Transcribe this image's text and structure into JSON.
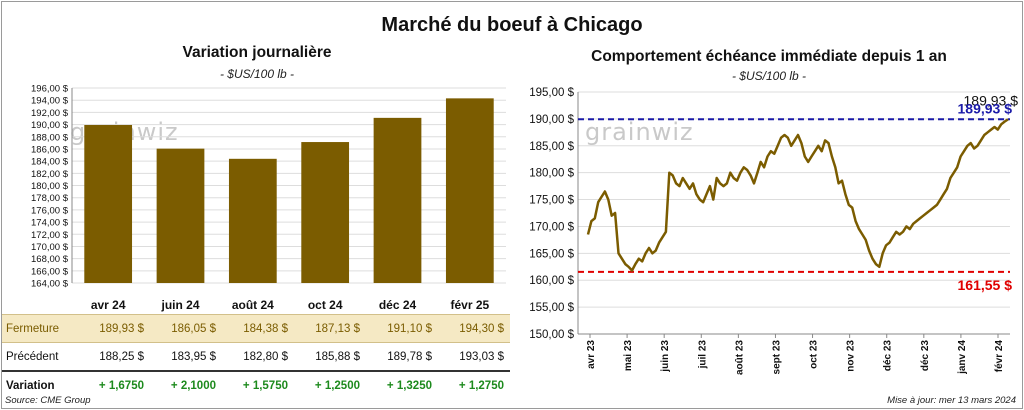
{
  "page_title": "Marché du boeuf à Chicago",
  "source": "Source: CME Group",
  "updated": "Mise à jour: mer 13 mars 2024",
  "watermark": "grainwiz",
  "colors": {
    "bar": "#7b5c00",
    "line": "#7b5c00",
    "high_line": "#1a1aa8",
    "low_line": "#e00000",
    "close_bg": "#f5e9c4"
  },
  "chart_data": [
    {
      "type": "bar",
      "title": "Variation journalière",
      "subtitle": "- $US/100 lb -",
      "categories": [
        "avr 24",
        "juin 24",
        "août 24",
        "oct 24",
        "déc 24",
        "févr 25"
      ],
      "values": [
        189.93,
        186.05,
        184.38,
        187.13,
        191.1,
        194.3
      ],
      "ylim": [
        164,
        196
      ],
      "yticks": [
        164,
        166,
        168,
        170,
        172,
        174,
        176,
        178,
        180,
        182,
        184,
        186,
        188,
        190,
        192,
        194,
        196
      ],
      "ytick_labels": [
        "164,00 $",
        "166,00 $",
        "168,00 $",
        "170,00 $",
        "172,00 $",
        "174,00 $",
        "176,00 $",
        "178,00 $",
        "180,00 $",
        "182,00 $",
        "184,00 $",
        "186,00 $",
        "188,00 $",
        "190,00 $",
        "192,00 $",
        "194,00 $",
        "196,00 $"
      ],
      "grid": true,
      "table": {
        "rows": [
          {
            "label": "Fermeture",
            "values": [
              "189,93  $",
              "186,05  $",
              "184,38  $",
              "187,13  $",
              "191,10  $",
              "194,30  $"
            ]
          },
          {
            "label": "Précédent",
            "values": [
              "188,25  $",
              "183,95  $",
              "182,80  $",
              "185,88  $",
              "189,78  $",
              "193,03  $"
            ]
          },
          {
            "label": "Variation",
            "values": [
              "+ 1,6750",
              "+ 2,1000",
              "+ 1,5750",
              "+ 1,2500",
              "+ 1,3250",
              "+ 1,2750"
            ]
          }
        ]
      }
    },
    {
      "type": "line",
      "title": "Comportement  échéance immédiate depuis 1 an",
      "subtitle": "- $US/100 lb -",
      "ylim": [
        150,
        195
      ],
      "yticks": [
        150,
        155,
        160,
        165,
        170,
        175,
        180,
        185,
        190,
        195
      ],
      "ytick_labels": [
        "150,00 $",
        "155,00 $",
        "160,00 $",
        "165,00 $",
        "170,00 $",
        "175,00 $",
        "180,00 $",
        "185,00 $",
        "190,00 $",
        "195,00 $"
      ],
      "x_labels": [
        "avr 23",
        "mai 23",
        "juin 23",
        "juil 23",
        "août 23",
        "sept 23",
        "oct 23",
        "nov 23",
        "déc 23",
        "déc 23",
        "janv 24",
        "févr 24"
      ],
      "series": [
        {
          "values": [
            168.5,
            171,
            171.5,
            174.5,
            175.5,
            176.5,
            175,
            172,
            172.5,
            165,
            164,
            163,
            162.5,
            161.8,
            163,
            164,
            163.5,
            165,
            166,
            165,
            165.5,
            167,
            168,
            169,
            180,
            179.5,
            178,
            177.5,
            179,
            178,
            177,
            178,
            176,
            175,
            174.5,
            176,
            177.5,
            175,
            179,
            178,
            177.5,
            178,
            180,
            179,
            178.5,
            180,
            181,
            180.5,
            179.5,
            178,
            180,
            182,
            181,
            183,
            184,
            183.5,
            185,
            186.5,
            187,
            186.5,
            185,
            186,
            187,
            185.5,
            183,
            182,
            183,
            184,
            185,
            184,
            186,
            185.5,
            183,
            181,
            178,
            178.5,
            176,
            174,
            173.5,
            171,
            169.5,
            168.5,
            167.5,
            165.5,
            164,
            163,
            162.5,
            165,
            166.5,
            167,
            168,
            169,
            168.5,
            169,
            170,
            169.5,
            170.5,
            171,
            171.5,
            172,
            172.5,
            173,
            173.5,
            174,
            175,
            176,
            177,
            179,
            180,
            181,
            183,
            184,
            185,
            185.5,
            184.5,
            185,
            186,
            187,
            187.5,
            188,
            188.5,
            188,
            189,
            189.5,
            189.93
          ]
        }
      ],
      "reference_lines": [
        {
          "name": "high",
          "value": 189.93,
          "label": "189,93 $"
        },
        {
          "name": "low",
          "value": 161.55,
          "label": "161,55 $"
        }
      ],
      "last_value_label": "189,93 $",
      "grid": true
    }
  ]
}
